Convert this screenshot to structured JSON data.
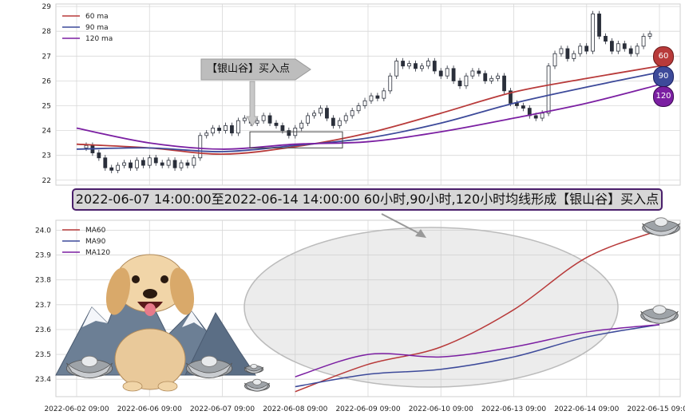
{
  "colors": {
    "ma60": "#b83a3a",
    "ma90": "#3d4a9a",
    "ma120": "#7b1fa2",
    "candle": "#2a2f3a"
  },
  "signal_label": "【银山谷】买入点",
  "banner_text": "2022-06-07 14:00:00至2022-06-14 14:00:00 60小时,90小时,120小时均线形成【银山谷】买入点",
  "badges": [
    "60",
    "90",
    "120"
  ],
  "decorations": [
    "dog-illustration",
    "snow-mountain-icon",
    "silver-ingot-icon",
    "ellipse-highlight",
    "arrow-icon"
  ],
  "chart_data": [
    {
      "type": "line",
      "chart": "candlestick-with-ma",
      "ylim": [
        21.8,
        29.1
      ],
      "yticks": [
        "22",
        "23",
        "24",
        "25",
        "26",
        "27",
        "28",
        "29"
      ],
      "legend": [
        "60 ma",
        "90 ma",
        "120 ma"
      ],
      "legend_position": "top-left",
      "grid": true,
      "x": [
        "2022-06-02 09:00",
        "2022-06-06 09:00",
        "2022-06-07 09:00",
        "2022-06-08 09:00",
        "2022-06-09 09:00",
        "2022-06-10 09:00",
        "2022-06-13 09:00",
        "2022-06-14 09:00",
        "2022-06-15 09:00"
      ],
      "series": [
        {
          "name": "60 ma",
          "values": [
            23.45,
            23.3,
            23.05,
            23.35,
            23.9,
            24.7,
            25.55,
            26.1,
            26.6
          ]
        },
        {
          "name": "90 ma",
          "values": [
            23.25,
            23.3,
            23.15,
            23.4,
            23.7,
            24.3,
            25.1,
            25.75,
            26.35
          ]
        },
        {
          "name": "120 ma",
          "values": [
            24.1,
            23.5,
            23.25,
            23.45,
            23.55,
            23.95,
            24.5,
            25.1,
            25.85
          ]
        }
      ],
      "candles_close": [
        23.4,
        23.1,
        22.9,
        22.5,
        22.4,
        22.6,
        22.7,
        22.5,
        22.8,
        22.6,
        22.9,
        22.7,
        22.6,
        22.8,
        22.5,
        22.7,
        22.6,
        22.9,
        23.8,
        23.9,
        24.1,
        24.0,
        24.2,
        23.9,
        24.4,
        24.5,
        24.3,
        24.4,
        24.6,
        24.3,
        24.2,
        24.0,
        23.8,
        24.1,
        24.3,
        24.6,
        24.7,
        24.9,
        24.5,
        24.2,
        24.4,
        24.6,
        24.8,
        25.0,
        25.2,
        25.4,
        25.3,
        25.6,
        26.2,
        26.8,
        26.6,
        26.7,
        26.5,
        26.6,
        26.8,
        26.4,
        26.2,
        26.5,
        26.0,
        25.8,
        26.2,
        26.4,
        26.3,
        26.0,
        26.1,
        26.2,
        25.6,
        25.1,
        25.0,
        24.9,
        24.6,
        24.5,
        24.7,
        26.6,
        27.1,
        27.3,
        26.9,
        27.1,
        27.4,
        27.2,
        28.7,
        27.8,
        27.6,
        27.2,
        27.5,
        27.3,
        27.1,
        27.4,
        27.8,
        27.9
      ]
    },
    {
      "type": "line",
      "chart": "ma-zoom",
      "ylim": [
        23.33,
        24.04
      ],
      "yticks": [
        "23.4",
        "23.5",
        "23.6",
        "23.7",
        "23.8",
        "23.9",
        "24.0"
      ],
      "legend": [
        "MA60",
        "MA90",
        "MA120"
      ],
      "legend_position": "top-left",
      "grid": true,
      "x": [
        "2022-06-02 09:00",
        "2022-06-06 09:00",
        "2022-06-07 09:00",
        "2022-06-08 09:00",
        "2022-06-09 09:00",
        "2022-06-10 09:00",
        "2022-06-13 09:00",
        "2022-06-14 09:00",
        "2022-06-15 09:00"
      ],
      "series": [
        {
          "name": "MA60",
          "values": [
            null,
            null,
            null,
            23.35,
            23.46,
            23.53,
            23.68,
            23.89,
            24.0
          ]
        },
        {
          "name": "MA90",
          "values": [
            null,
            null,
            null,
            23.37,
            23.42,
            23.44,
            23.49,
            23.57,
            23.62
          ]
        },
        {
          "name": "MA120",
          "values": [
            null,
            null,
            null,
            23.41,
            23.5,
            23.49,
            23.53,
            23.59,
            23.62
          ]
        }
      ]
    }
  ]
}
